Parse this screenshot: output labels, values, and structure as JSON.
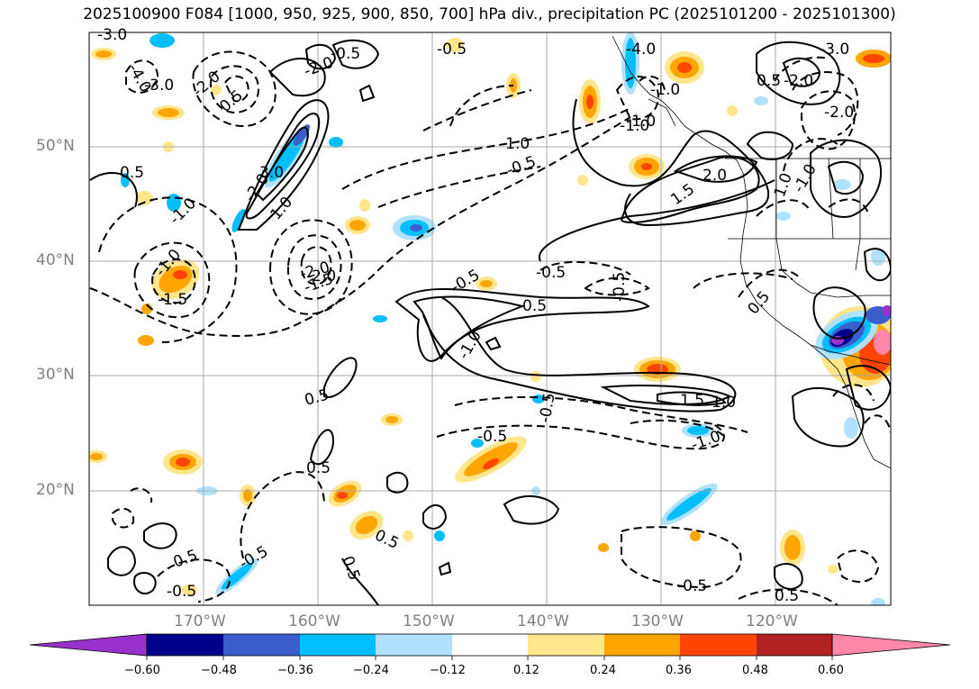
{
  "title": "2025100900 F084 [1000, 950, 925, 900, 850, 700] hPa div., precipitation PC (2025101200 - 2025101300)",
  "lat_labels": [
    "50°N",
    "40°N",
    "30°N",
    "20°N"
  ],
  "lon_labels": [
    "170°W",
    "160°W",
    "150°W",
    "140°W",
    "130°W",
    "120°W"
  ],
  "colorbar": {
    "ticks": [
      "−0.60",
      "−0.48",
      "−0.36",
      "−0.24",
      "−0.12",
      "0.12",
      "0.24",
      "0.36",
      "0.48",
      "0.60"
    ],
    "colors": [
      "#9932cc",
      "#00008b",
      "#3a5fcd",
      "#00bfff",
      "#b0e2ff",
      "#ffffff",
      "#ffe68c",
      "#ffa500",
      "#ff4500",
      "#b22222",
      "#ff88aa"
    ]
  },
  "contour_labels": [
    "-3.0",
    "-4.0",
    "-3.0",
    "-2.0",
    "0.5",
    "-2.0",
    "-0.5",
    "-0.5",
    "-4.0",
    "-1.0",
    "-3.0",
    "-2.0",
    "-2.0",
    "-1.0",
    "0.5",
    "-1.0",
    "-0.5",
    "-1.0",
    "2.0",
    "1.5",
    "1.0",
    "-1.0",
    "0.5",
    "3.0",
    "-1.0",
    "-2.0",
    "1.0",
    "-1.0",
    "-2.0",
    "-0.5",
    "-1.5",
    "-2.0",
    "-1.5",
    "-0.5",
    "0.5",
    "-0.5",
    "0.5",
    "-1.0",
    "-0.5",
    "1.5",
    "1.0",
    "-1.0",
    "-0.5",
    "0.5",
    "0.5",
    "0.5",
    "0.5",
    "-0.5",
    "0.5",
    "-0.5",
    "-0.5",
    "0.5"
  ]
}
